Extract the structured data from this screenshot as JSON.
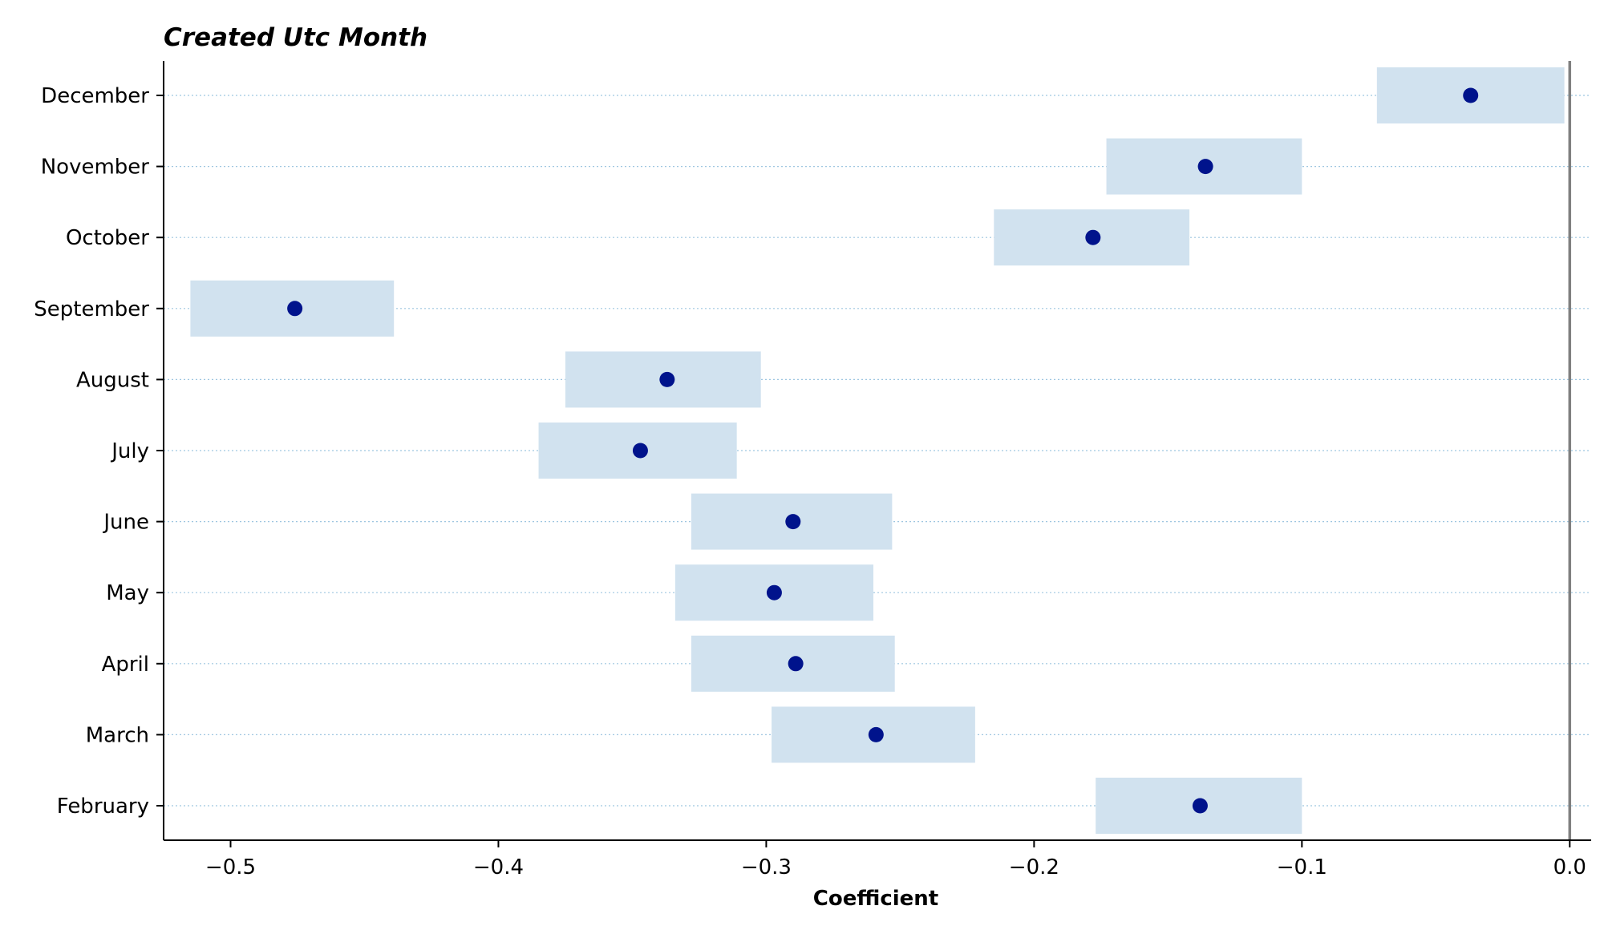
{
  "chart_data": {
    "type": "scatter",
    "title": "Created Utc Month",
    "xlabel": "Coefficient",
    "ylabel": "",
    "xlim": [
      -0.525,
      0.008
    ],
    "x_ticks": [
      -0.5,
      -0.4,
      -0.3,
      -0.2,
      -0.1,
      0.0
    ],
    "x_tick_labels": [
      "−0.5",
      "−0.4",
      "−0.3",
      "−0.2",
      "−0.1",
      "0.0"
    ],
    "reference_line_x": 0.0,
    "grid": "horizontal dotted",
    "categories": [
      "December",
      "November",
      "October",
      "September",
      "August",
      "July",
      "June",
      "May",
      "April",
      "March",
      "February"
    ],
    "series": [
      {
        "values": [
          -0.037,
          -0.136,
          -0.178,
          -0.476,
          -0.337,
          -0.347,
          -0.29,
          -0.297,
          -0.289,
          -0.259,
          -0.138
        ],
        "ci_low": [
          -0.072,
          -0.173,
          -0.215,
          -0.515,
          -0.375,
          -0.385,
          -0.328,
          -0.334,
          -0.328,
          -0.298,
          -0.177
        ],
        "ci_high": [
          -0.002,
          -0.1,
          -0.142,
          -0.439,
          -0.302,
          -0.311,
          -0.253,
          -0.26,
          -0.252,
          -0.222,
          -0.1
        ]
      }
    ],
    "colors": {
      "point": "#00138c",
      "interval": "#d1e2ef",
      "reference_line": "#808080",
      "grid": "#9ec6e0"
    }
  }
}
